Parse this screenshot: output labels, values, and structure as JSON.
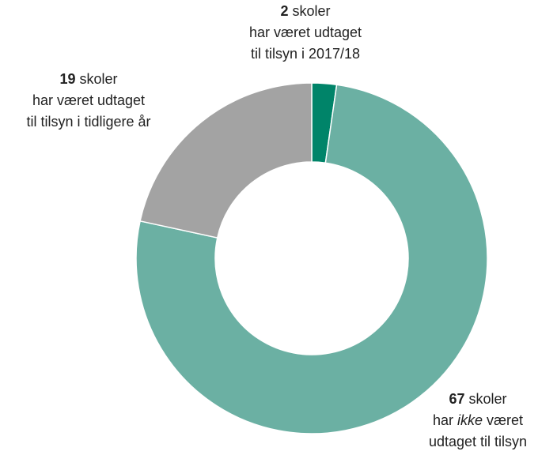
{
  "chart_data": {
    "type": "donut",
    "categories": [
      null,
      null,
      null
    ],
    "values": [
      2,
      67,
      19
    ],
    "colors": [
      "#008469",
      "#6bb0a3",
      "#a3a3a3"
    ],
    "labels": [
      {
        "unit": "skoler",
        "lines": [
          [
            "har været udtaget"
          ],
          [
            "til tilsyn i 2017/18"
          ]
        ]
      },
      {
        "unit": "skoler",
        "lines": [
          [
            "har",
            {
              "text": "ikke",
              "style": "italic"
            },
            "været"
          ],
          [
            "udtaget til tilsyn"
          ]
        ]
      },
      {
        "unit": "skoler",
        "lines": [
          [
            "har været udtaget"
          ],
          [
            "til tilsyn i tidligere år"
          ]
        ]
      }
    ]
  }
}
